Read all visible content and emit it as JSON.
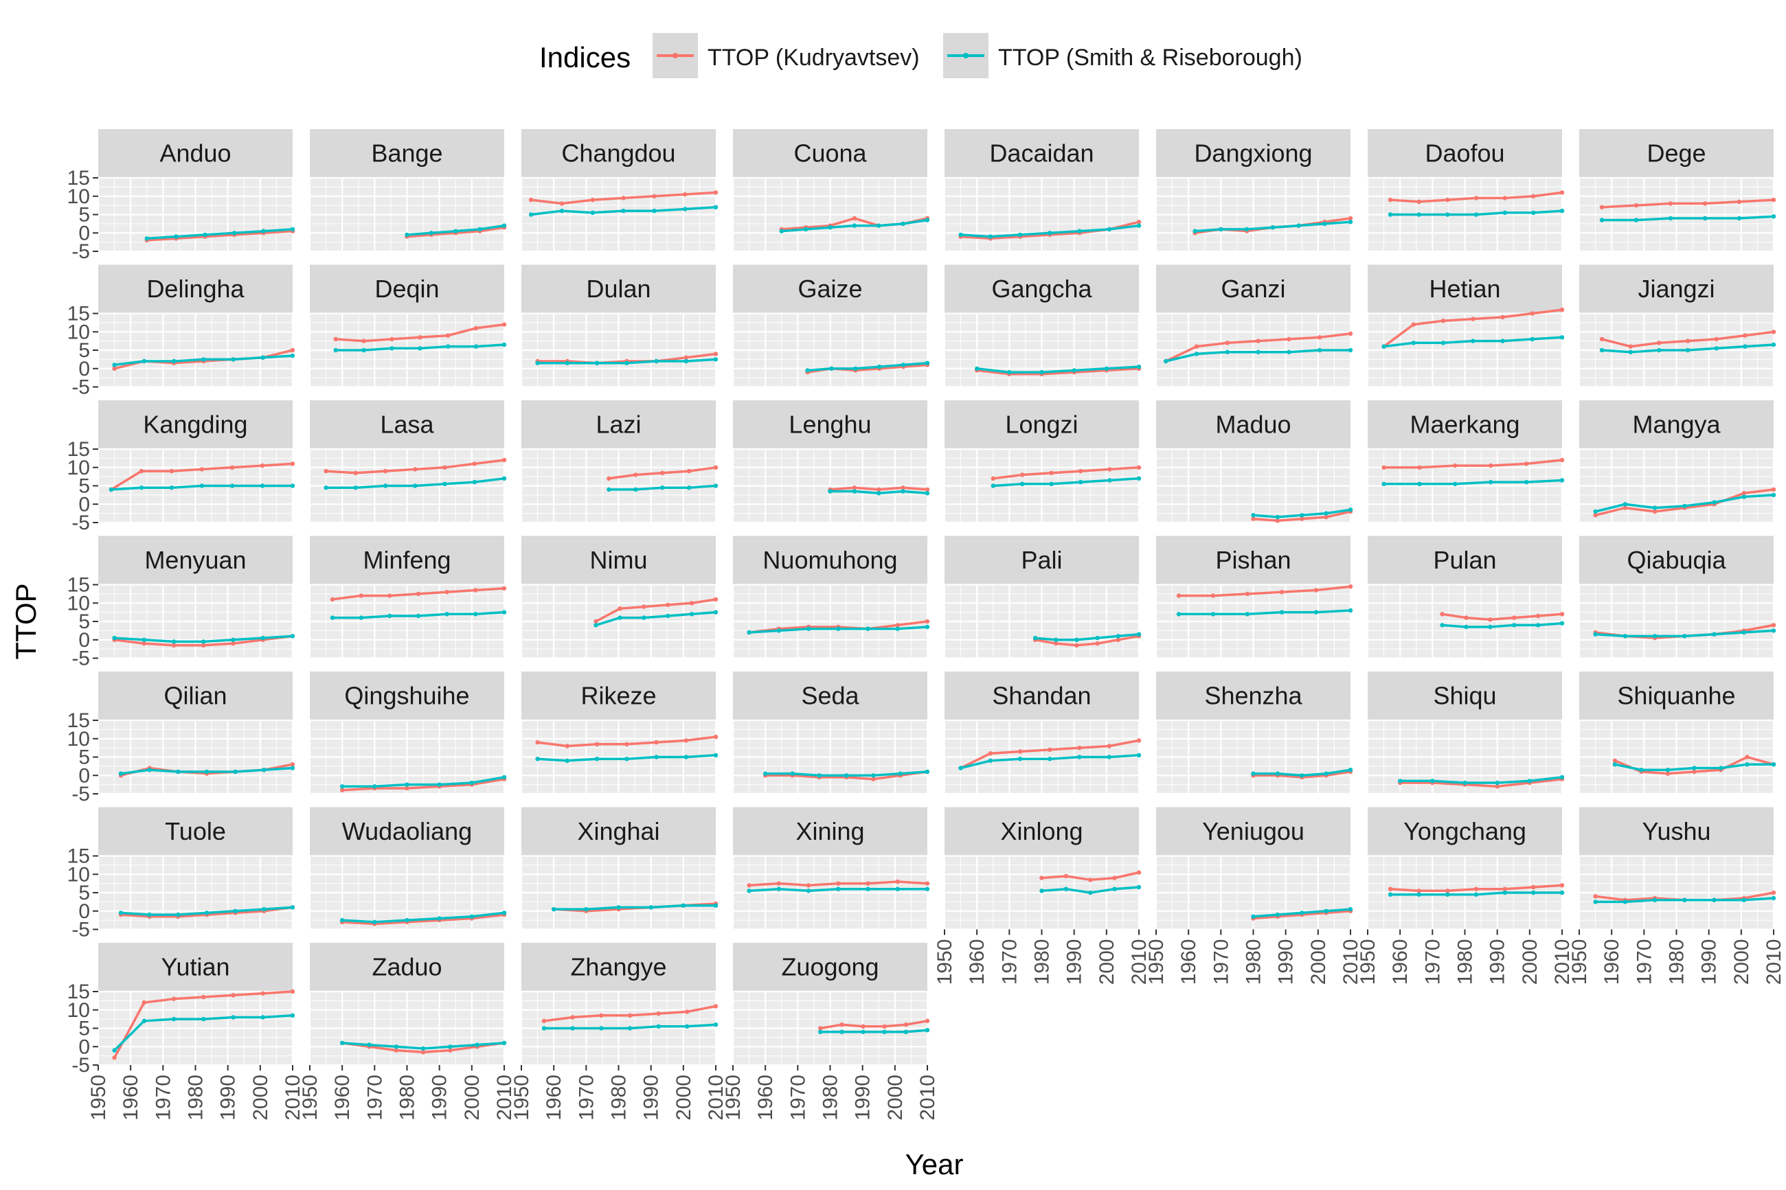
{
  "chart_data": {
    "type": "line",
    "xlabel": "Year",
    "ylabel": "TTOP",
    "xlim": [
      1950,
      2010
    ],
    "ylim": [
      -5,
      15
    ],
    "x_ticks": [
      "1950",
      "1960",
      "1970",
      "1980",
      "1990",
      "2000",
      "2010"
    ],
    "y_ticks": [
      "-5",
      "0",
      "5",
      "10",
      "15"
    ],
    "grid": true,
    "legend": {
      "title": "Indices",
      "position": "top",
      "series": [
        {
          "name": "TTOP (Kudryavtsev)",
          "color": "#F8766D"
        },
        {
          "name": "TTOP (Smith & Riseborough)",
          "color": "#00BFC4"
        }
      ]
    },
    "panels": [
      {
        "station": "Anduo",
        "start": 1965,
        "end": 2010,
        "kud": [
          -2,
          -1.5,
          -1,
          -0.5,
          0,
          0.5
        ],
        "smith": [
          -1.5,
          -1,
          -0.5,
          0,
          0.5,
          1
        ]
      },
      {
        "station": "Bange",
        "start": 1980,
        "end": 2010,
        "kud": [
          -1,
          -0.5,
          0,
          0.5,
          1.5
        ],
        "smith": [
          -0.5,
          0,
          0.5,
          1,
          2
        ]
      },
      {
        "station": "Changdou",
        "start": 1953,
        "end": 2010,
        "kud": [
          9,
          8,
          9,
          9.5,
          10,
          10.5,
          11
        ],
        "smith": [
          5,
          6,
          5.5,
          6,
          6,
          6.5,
          7
        ]
      },
      {
        "station": "Cuona",
        "start": 1965,
        "end": 2010,
        "kud": [
          1,
          1.5,
          2,
          4,
          2,
          2.5,
          4
        ],
        "smith": [
          0.5,
          1,
          1.5,
          2,
          2,
          2.5,
          3.5
        ]
      },
      {
        "station": "Dacaidan",
        "start": 1955,
        "end": 2010,
        "kud": [
          -1,
          -1.5,
          -1,
          -0.5,
          0,
          1,
          3
        ],
        "smith": [
          -0.5,
          -1,
          -0.5,
          0,
          0.5,
          1,
          2
        ]
      },
      {
        "station": "Dangxiong",
        "start": 1962,
        "end": 2010,
        "kud": [
          0,
          1,
          0.5,
          1.5,
          2,
          3,
          4
        ],
        "smith": [
          0.5,
          1,
          1,
          1.5,
          2,
          2.5,
          3
        ]
      },
      {
        "station": "Daofou",
        "start": 1957,
        "end": 2010,
        "kud": [
          9,
          8.5,
          9,
          9.5,
          9.5,
          10,
          11
        ],
        "smith": [
          5,
          5,
          5,
          5,
          5.5,
          5.5,
          6
        ]
      },
      {
        "station": "Dege",
        "start": 1957,
        "end": 2010,
        "kud": [
          7,
          7.5,
          8,
          8,
          8.5,
          9
        ],
        "smith": [
          3.5,
          3.5,
          4,
          4,
          4,
          4.5
        ]
      },
      {
        "station": "Delingha",
        "start": 1955,
        "end": 2010,
        "kud": [
          0,
          2,
          1.5,
          2,
          2.5,
          3,
          5
        ],
        "smith": [
          1,
          2,
          2,
          2.5,
          2.5,
          3,
          3.5
        ]
      },
      {
        "station": "Deqin",
        "start": 1958,
        "end": 2010,
        "kud": [
          8,
          7.5,
          8,
          8.5,
          9,
          11,
          12
        ],
        "smith": [
          5,
          5,
          5.5,
          5.5,
          6,
          6,
          6.5
        ]
      },
      {
        "station": "Dulan",
        "start": 1955,
        "end": 2010,
        "kud": [
          2,
          2,
          1.5,
          2,
          2,
          3,
          4
        ],
        "smith": [
          1.5,
          1.5,
          1.5,
          1.5,
          2,
          2,
          2.5
        ]
      },
      {
        "station": "Gaize",
        "start": 1973,
        "end": 2010,
        "kud": [
          -1,
          0,
          -0.5,
          0,
          0.5,
          1
        ],
        "smith": [
          -0.5,
          0,
          0,
          0.5,
          1,
          1.5
        ]
      },
      {
        "station": "Gangcha",
        "start": 1960,
        "end": 2010,
        "kud": [
          -0.5,
          -1.5,
          -1.5,
          -1,
          -0.5,
          0
        ],
        "smith": [
          0,
          -1,
          -1,
          -0.5,
          0,
          0.5
        ]
      },
      {
        "station": "Ganzi",
        "start": 1953,
        "end": 2010,
        "kud": [
          2,
          6,
          7,
          7.5,
          8,
          8.5,
          9.5
        ],
        "smith": [
          2,
          4,
          4.5,
          4.5,
          4.5,
          5,
          5
        ]
      },
      {
        "station": "Hetian",
        "start": 1955,
        "end": 2010,
        "kud": [
          6,
          12,
          13,
          13.5,
          14,
          15,
          16
        ],
        "smith": [
          6,
          7,
          7,
          7.5,
          7.5,
          8,
          8.5
        ]
      },
      {
        "station": "Jiangzi",
        "start": 1957,
        "end": 2010,
        "kud": [
          8,
          6,
          7,
          7.5,
          8,
          9,
          10
        ],
        "smith": [
          5,
          4.5,
          5,
          5,
          5.5,
          6,
          6.5
        ]
      },
      {
        "station": "Kangding",
        "start": 1954,
        "end": 2010,
        "kud": [
          4,
          9,
          9,
          9.5,
          10,
          10.5,
          11
        ],
        "smith": [
          4,
          4.5,
          4.5,
          5,
          5,
          5,
          5
        ]
      },
      {
        "station": "Lasa",
        "start": 1955,
        "end": 2010,
        "kud": [
          9,
          8.5,
          9,
          9.5,
          10,
          11,
          12
        ],
        "smith": [
          4.5,
          4.5,
          5,
          5,
          5.5,
          6,
          7
        ]
      },
      {
        "station": "Lazi",
        "start": 1977,
        "end": 2010,
        "kud": [
          7,
          8,
          8.5,
          9,
          10
        ],
        "smith": [
          4,
          4,
          4.5,
          4.5,
          5
        ]
      },
      {
        "station": "Lenghu",
        "start": 1980,
        "end": 2010,
        "kud": [
          4,
          4.5,
          4,
          4.5,
          4
        ],
        "smith": [
          3.5,
          3.5,
          3,
          3.5,
          3
        ]
      },
      {
        "station": "Longzi",
        "start": 1965,
        "end": 2010,
        "kud": [
          7,
          8,
          8.5,
          9,
          9.5,
          10
        ],
        "smith": [
          5,
          5.5,
          5.5,
          6,
          6.5,
          7
        ]
      },
      {
        "station": "Maduo",
        "start": 1980,
        "end": 2010,
        "kud": [
          -4,
          -4.5,
          -4,
          -3.5,
          -2
        ],
        "smith": [
          -3,
          -3.5,
          -3,
          -2.5,
          -1.5
        ]
      },
      {
        "station": "Maerkang",
        "start": 1955,
        "end": 2010,
        "kud": [
          10,
          10,
          10.5,
          10.5,
          11,
          12
        ],
        "smith": [
          5.5,
          5.5,
          5.5,
          6,
          6,
          6.5
        ]
      },
      {
        "station": "Mangya",
        "start": 1955,
        "end": 2010,
        "kud": [
          -3,
          -1,
          -2,
          -1,
          0,
          3,
          4
        ],
        "smith": [
          -2,
          0,
          -1,
          -0.5,
          0.5,
          2,
          2.5
        ]
      },
      {
        "station": "Menyuan",
        "start": 1955,
        "end": 2010,
        "kud": [
          0,
          -1,
          -1.5,
          -1.5,
          -1,
          0,
          1
        ],
        "smith": [
          0.5,
          0,
          -0.5,
          -0.5,
          0,
          0.5,
          1
        ]
      },
      {
        "station": "Minfeng",
        "start": 1957,
        "end": 2010,
        "kud": [
          11,
          12,
          12,
          12.5,
          13,
          13.5,
          14
        ],
        "smith": [
          6,
          6,
          6.5,
          6.5,
          7,
          7,
          7.5
        ]
      },
      {
        "station": "Nimu",
        "start": 1973,
        "end": 2010,
        "kud": [
          5,
          8.5,
          9,
          9.5,
          10,
          11
        ],
        "smith": [
          4,
          6,
          6,
          6.5,
          7,
          7.5
        ]
      },
      {
        "station": "Nuomuhong",
        "start": 1955,
        "end": 2010,
        "kud": [
          2,
          3,
          3.5,
          3.5,
          3,
          4,
          5
        ],
        "smith": [
          2,
          2.5,
          3,
          3,
          3,
          3,
          3.5
        ]
      },
      {
        "station": "Pali",
        "start": 1978,
        "end": 2010,
        "kud": [
          0,
          -1,
          -1.5,
          -1,
          0,
          1
        ],
        "smith": [
          0.5,
          0,
          0,
          0.5,
          1,
          1.5
        ]
      },
      {
        "station": "Pishan",
        "start": 1957,
        "end": 2010,
        "kud": [
          12,
          12,
          12.5,
          13,
          13.5,
          14.5
        ],
        "smith": [
          7,
          7,
          7,
          7.5,
          7.5,
          8
        ]
      },
      {
        "station": "Pulan",
        "start": 1973,
        "end": 2010,
        "kud": [
          7,
          6,
          5.5,
          6,
          6.5,
          7
        ],
        "smith": [
          4,
          3.5,
          3.5,
          4,
          4,
          4.5
        ]
      },
      {
        "station": "Qiabuqia",
        "start": 1955,
        "end": 2010,
        "kud": [
          2,
          1,
          0.5,
          1,
          1.5,
          2.5,
          4
        ],
        "smith": [
          1.5,
          1,
          1,
          1,
          1.5,
          2,
          2.5
        ]
      },
      {
        "station": "Qilian",
        "start": 1957,
        "end": 2010,
        "kud": [
          0,
          2,
          1,
          0.5,
          1,
          1.5,
          3
        ],
        "smith": [
          0.5,
          1.5,
          1,
          1,
          1,
          1.5,
          2
        ]
      },
      {
        "station": "Qingshuihe",
        "start": 1960,
        "end": 2010,
        "kud": [
          -4,
          -3.5,
          -3.5,
          -3,
          -2.5,
          -1
        ],
        "smith": [
          -3,
          -3,
          -2.5,
          -2.5,
          -2,
          -0.5
        ]
      },
      {
        "station": "Rikeze",
        "start": 1955,
        "end": 2010,
        "kud": [
          9,
          8,
          8.5,
          8.5,
          9,
          9.5,
          10.5
        ],
        "smith": [
          4.5,
          4,
          4.5,
          4.5,
          5,
          5,
          5.5
        ]
      },
      {
        "station": "Seda",
        "start": 1960,
        "end": 2010,
        "kud": [
          0,
          0,
          -0.5,
          -0.5,
          -1,
          0,
          1
        ],
        "smith": [
          0.5,
          0.5,
          0,
          0,
          0,
          0.5,
          1
        ]
      },
      {
        "station": "Shandan",
        "start": 1955,
        "end": 2010,
        "kud": [
          2,
          6,
          6.5,
          7,
          7.5,
          8,
          9.5
        ],
        "smith": [
          2,
          4,
          4.5,
          4.5,
          5,
          5,
          5.5
        ]
      },
      {
        "station": "Shenzha",
        "start": 1980,
        "end": 2010,
        "kud": [
          0,
          0,
          -0.5,
          0,
          1
        ],
        "smith": [
          0.5,
          0.5,
          0,
          0.5,
          1.5
        ]
      },
      {
        "station": "Shiqu",
        "start": 1960,
        "end": 2010,
        "kud": [
          -2,
          -2,
          -2.5,
          -3,
          -2,
          -1
        ],
        "smith": [
          -1.5,
          -1.5,
          -2,
          -2,
          -1.5,
          -0.5
        ]
      },
      {
        "station": "Shiquanhe",
        "start": 1961,
        "end": 2010,
        "kud": [
          4,
          1,
          0.5,
          1,
          1.5,
          5,
          3
        ],
        "smith": [
          3,
          1.5,
          1.5,
          2,
          2,
          3,
          3
        ]
      },
      {
        "station": "Tuole",
        "start": 1957,
        "end": 2010,
        "kud": [
          -1,
          -1.5,
          -1.5,
          -1,
          -0.5,
          0,
          1
        ],
        "smith": [
          -0.5,
          -1,
          -1,
          -0.5,
          0,
          0.5,
          1
        ]
      },
      {
        "station": "Wudaoliang",
        "start": 1960,
        "end": 2010,
        "kud": [
          -3,
          -3.5,
          -3,
          -2.5,
          -2,
          -1
        ],
        "smith": [
          -2.5,
          -3,
          -2.5,
          -2,
          -1.5,
          -0.5
        ]
      },
      {
        "station": "Xinghai",
        "start": 1960,
        "end": 2010,
        "kud": [
          0.5,
          0,
          0.5,
          1,
          1.5,
          2
        ],
        "smith": [
          0.5,
          0.5,
          1,
          1,
          1.5,
          1.5
        ]
      },
      {
        "station": "Xining",
        "start": 1955,
        "end": 2010,
        "kud": [
          7,
          7.5,
          7,
          7.5,
          7.5,
          8,
          7.5
        ],
        "smith": [
          5.5,
          6,
          5.5,
          6,
          6,
          6,
          6
        ]
      },
      {
        "station": "Xinlong",
        "start": 1980,
        "end": 2010,
        "kud": [
          9,
          9.5,
          8.5,
          9,
          10.5
        ],
        "smith": [
          5.5,
          6,
          5,
          6,
          6.5
        ]
      },
      {
        "station": "Yeniugou",
        "start": 1980,
        "end": 2010,
        "kud": [
          -2,
          -1.5,
          -1,
          -0.5,
          0
        ],
        "smith": [
          -1.5,
          -1,
          -0.5,
          0,
          0.5
        ]
      },
      {
        "station": "Yongchang",
        "start": 1957,
        "end": 2010,
        "kud": [
          6,
          5.5,
          5.5,
          6,
          6,
          6.5,
          7
        ],
        "smith": [
          4.5,
          4.5,
          4.5,
          4.5,
          5,
          5,
          5
        ]
      },
      {
        "station": "Yushu",
        "start": 1955,
        "end": 2010,
        "kud": [
          4,
          3,
          3.5,
          3,
          3,
          3.5,
          5
        ],
        "smith": [
          2.5,
          2.5,
          3,
          3,
          3,
          3,
          3.5
        ]
      },
      {
        "station": "Yutian",
        "start": 1955,
        "end": 2010,
        "kud": [
          -3,
          12,
          13,
          13.5,
          14,
          14.5,
          15
        ],
        "smith": [
          -1,
          7,
          7.5,
          7.5,
          8,
          8,
          8.5
        ]
      },
      {
        "station": "Zaduo",
        "start": 1960,
        "end": 2010,
        "kud": [
          1,
          0,
          -1,
          -1.5,
          -1,
          0,
          1
        ],
        "smith": [
          1,
          0.5,
          0,
          -0.5,
          0,
          0.5,
          1
        ]
      },
      {
        "station": "Zhangye",
        "start": 1957,
        "end": 2010,
        "kud": [
          7,
          8,
          8.5,
          8.5,
          9,
          9.5,
          11
        ],
        "smith": [
          5,
          5,
          5,
          5,
          5.5,
          5.5,
          6
        ]
      },
      {
        "station": "Zuogong",
        "start": 1977,
        "end": 2010,
        "kud": [
          5,
          6,
          5.5,
          5.5,
          6,
          7
        ],
        "smith": [
          4,
          4,
          4,
          4,
          4,
          4.5
        ]
      }
    ]
  }
}
